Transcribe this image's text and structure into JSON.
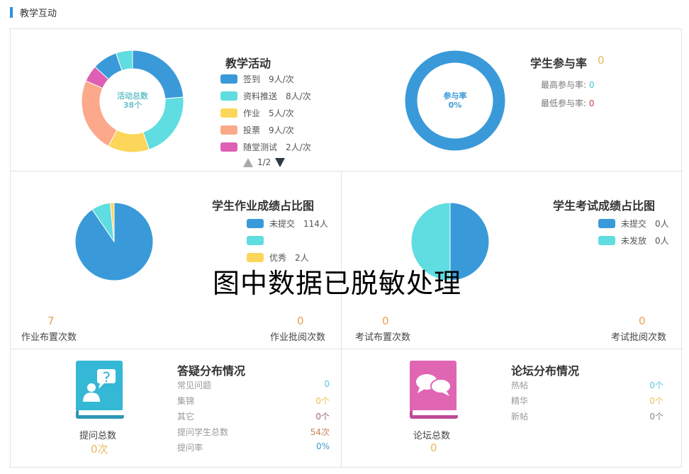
{
  "header": {
    "title": "教学互动"
  },
  "activity": {
    "title": "教学活动",
    "center_label": "活动总数",
    "center_value": "38个",
    "pager": "1/2",
    "legend": [
      {
        "label": "签到",
        "value": "9人/次",
        "color": "#3a9ad9"
      },
      {
        "label": "资料推送",
        "value": "8人/次",
        "color": "#5fdde0"
      },
      {
        "label": "作业",
        "value": "5人/次",
        "color": "#fcd55b"
      },
      {
        "label": "投票",
        "value": "9人/次",
        "color": "#fba98a"
      },
      {
        "label": "随堂测试",
        "value": "2人/次",
        "color": "#de5fb3"
      }
    ]
  },
  "participation": {
    "title": "学生参与率",
    "value": "0",
    "center_label": "参与率",
    "center_value": "0%",
    "max_label": "最高参与率:",
    "max_value": "0",
    "min_label": "最低参与率:",
    "min_value": "0",
    "ring_color": "#3a9ad9"
  },
  "homework": {
    "title": "学生作业成绩占比图",
    "legend": [
      {
        "label": "未提交",
        "value": "114人",
        "color": "#3a9ad9"
      },
      {
        "label": "",
        "value": "",
        "color": "#5fdde0"
      },
      {
        "label": "优秀",
        "value": "2人",
        "color": "#fcd55b"
      }
    ],
    "assigned_count": "7",
    "assigned_label": "作业布置次数",
    "reviewed_count": "0",
    "reviewed_label": "作业批阅次数"
  },
  "exam": {
    "title": "学生考试成绩占比图",
    "legend": [
      {
        "label": "未提交",
        "value": "0人",
        "color": "#3a9ad9"
      },
      {
        "label": "未发放",
        "value": "0人",
        "color": "#5fdde0"
      }
    ],
    "assigned_count": "0",
    "assigned_label": "考试布置次数",
    "reviewed_count": "0",
    "reviewed_label": "考试批阅次数"
  },
  "qa": {
    "title": "答疑分布情况",
    "total_label": "提问总数",
    "total_value": "0次",
    "icon": "question-book-icon",
    "icon_color": "#35b8d6",
    "rows": [
      {
        "label": "常见问题",
        "value": "0",
        "color": "#5bc8d6"
      },
      {
        "label": "集锦",
        "value": "0个",
        "color": "#e8c35a"
      },
      {
        "label": "其它",
        "value": "0个",
        "color": "#9a6a7a"
      },
      {
        "label": "提问学生总数",
        "value": "54次",
        "color": "#c8825a"
      },
      {
        "label": "提问率",
        "value": "0%",
        "color": "#4a9ac8"
      }
    ]
  },
  "forum": {
    "title": "论坛分布情况",
    "total_label": "论坛总数",
    "total_value": "0",
    "icon": "chat-book-icon",
    "icon_color": "#e066b4",
    "rows": [
      {
        "label": "热帖",
        "value": "0个",
        "color": "#5bc8d6"
      },
      {
        "label": "精华",
        "value": "0个",
        "color": "#e8c35a"
      },
      {
        "label": "新帖",
        "value": "0个",
        "color": "#888"
      }
    ]
  },
  "watermark": "图中数据已脱敏处理",
  "chart_data": [
    {
      "type": "pie",
      "donut": true,
      "categories": [
        "签到",
        "资料推送",
        "作业",
        "投票",
        "随堂测试",
        "",
        ""
      ],
      "values": [
        9,
        8,
        5,
        9,
        2,
        3,
        2
      ],
      "colors": [
        "#3a9ad9",
        "#5fdde0",
        "#fcd55b",
        "#fba98a",
        "#de5fb3",
        "#3a9ad9",
        "#5fdde0"
      ]
    },
    {
      "type": "pie",
      "donut": true,
      "categories": [
        "参与率"
      ],
      "values": [
        0
      ],
      "colors": [
        "#3a9ad9"
      ]
    },
    {
      "type": "pie",
      "categories": [
        "未提交",
        "",
        "优秀"
      ],
      "values": [
        114,
        10,
        2
      ],
      "colors": [
        "#3a9ad9",
        "#5fdde0",
        "#fcd55b"
      ]
    },
    {
      "type": "pie",
      "categories": [
        "未提交",
        "未发放"
      ],
      "values": [
        0,
        0
      ],
      "colors": [
        "#3a9ad9",
        "#5fdde0"
      ]
    }
  ]
}
